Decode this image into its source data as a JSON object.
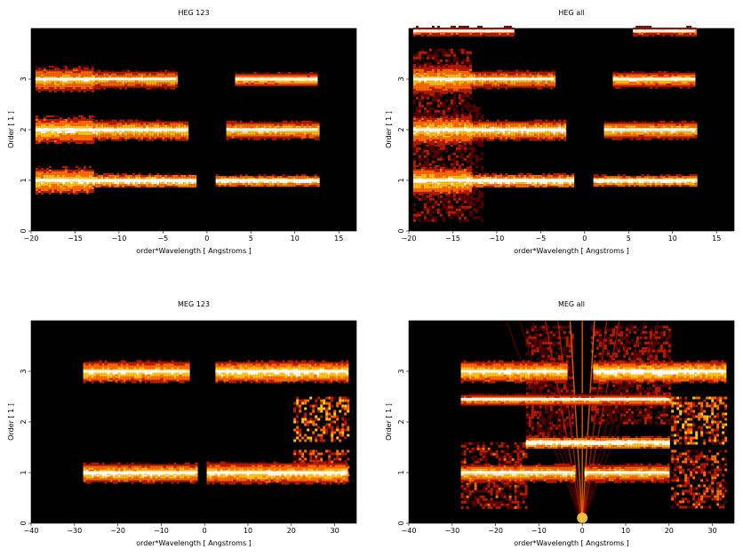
{
  "chart_data": [
    {
      "type": "heatmap",
      "title": "HEG 123",
      "xlabel": "order*Wavelength [ Angstroms ]",
      "ylabel": "Order [ 1 ]",
      "xlim": [
        -20,
        17
      ],
      "ylim": [
        0,
        4
      ],
      "xticks": [
        -20,
        -15,
        -10,
        -5,
        0,
        5,
        10,
        15
      ],
      "yticks": [
        0,
        1,
        2,
        3
      ],
      "colormap": [
        "#000000",
        "#5a0000",
        "#b51c00",
        "#ff6a00",
        "#ffc21a",
        "#ffffff"
      ],
      "bands": [
        {
          "order": 1,
          "x": [
            -19.5,
            -13.0
          ],
          "intensity": 0.85,
          "width": 0.28
        },
        {
          "order": 1,
          "x": [
            -13.0,
            -1.2
          ],
          "intensity": 0.95,
          "width": 0.14
        },
        {
          "order": 1,
          "x": [
            1.0,
            12.6
          ],
          "intensity": 0.95,
          "width": 0.12
        },
        {
          "order": 2,
          "x": [
            -19.5,
            -13.0
          ],
          "intensity": 0.85,
          "width": 0.28
        },
        {
          "order": 2,
          "x": [
            -13.0,
            -2.2
          ],
          "intensity": 0.9,
          "width": 0.2
        },
        {
          "order": 2,
          "x": [
            2.2,
            12.6
          ],
          "intensity": 0.85,
          "width": 0.18
        },
        {
          "order": 3,
          "x": [
            -19.5,
            -13.0
          ],
          "intensity": 0.8,
          "width": 0.26
        },
        {
          "order": 3,
          "x": [
            -13.0,
            -3.5
          ],
          "intensity": 0.8,
          "width": 0.18
        },
        {
          "order": 3,
          "x": [
            3.2,
            12.6
          ],
          "intensity": 0.8,
          "width": 0.14
        }
      ]
    },
    {
      "type": "heatmap",
      "title": "HEG all",
      "xlabel": "order*Wavelength [ Angstroms ]",
      "ylabel": "Order [ 1 ]",
      "xlim": [
        -20,
        17
      ],
      "ylim": [
        0,
        4
      ],
      "xticks": [
        -20,
        -15,
        -10,
        -5,
        0,
        5,
        10,
        15
      ],
      "yticks": [
        0,
        1,
        2,
        3
      ],
      "colormap": [
        "#000000",
        "#5a0000",
        "#b51c00",
        "#ff6a00",
        "#ffc21a",
        "#ffffff"
      ],
      "bands": [
        {
          "order": 1,
          "x": [
            -19.5,
            -13.0
          ],
          "intensity": 0.85,
          "width": 0.3
        },
        {
          "order": 1,
          "x": [
            -13.0,
            -1.2
          ],
          "intensity": 0.95,
          "width": 0.14
        },
        {
          "order": 1,
          "x": [
            1.0,
            12.6
          ],
          "intensity": 0.95,
          "width": 0.12
        },
        {
          "order": 2,
          "x": [
            -19.5,
            -13.0
          ],
          "intensity": 0.85,
          "width": 0.3
        },
        {
          "order": 2,
          "x": [
            -13.0,
            -2.2
          ],
          "intensity": 0.9,
          "width": 0.2
        },
        {
          "order": 2,
          "x": [
            2.2,
            12.6
          ],
          "intensity": 0.85,
          "width": 0.18
        },
        {
          "order": 3,
          "x": [
            -19.5,
            -13.0
          ],
          "intensity": 0.8,
          "width": 0.3
        },
        {
          "order": 3,
          "x": [
            -13.0,
            -3.5
          ],
          "intensity": 0.8,
          "width": 0.18
        },
        {
          "order": 3,
          "x": [
            3.2,
            12.6
          ],
          "intensity": 0.8,
          "width": 0.16
        },
        {
          "order": 3.95,
          "x": [
            -19.5,
            -8.0
          ],
          "intensity": 0.6,
          "width": 0.1
        },
        {
          "order": 3.95,
          "x": [
            5.5,
            12.6
          ],
          "intensity": 0.6,
          "width": 0.1
        }
      ],
      "scatter_blocks": [
        {
          "x": [
            -19.5,
            -13.0
          ],
          "y": [
            0.2,
            3.6
          ],
          "intensity": 0.35
        },
        {
          "x": [
            -13.0,
            -11.5
          ],
          "y": [
            0.2,
            2.5
          ],
          "intensity": 0.25
        }
      ]
    },
    {
      "type": "heatmap",
      "title": "MEG 123",
      "xlabel": "order*Wavelength [ Angstroms ]",
      "ylabel": "Order [ 1 ]",
      "xlim": [
        -40,
        35
      ],
      "ylim": [
        0,
        4
      ],
      "xticks": [
        -40,
        -30,
        -20,
        -10,
        0,
        10,
        20,
        30
      ],
      "yticks": [
        0,
        1,
        2,
        3
      ],
      "colormap": [
        "#000000",
        "#5a0000",
        "#b51c00",
        "#ff6a00",
        "#ffc21a",
        "#ffffff"
      ],
      "bands": [
        {
          "order": 1,
          "x": [
            -28.0,
            -2.0
          ],
          "intensity": 0.9,
          "width": 0.2
        },
        {
          "order": 1,
          "x": [
            0.5,
            33.0
          ],
          "intensity": 0.85,
          "width": 0.22
        },
        {
          "order": 3,
          "x": [
            -28.0,
            -4.0
          ],
          "intensity": 0.85,
          "width": 0.22
        },
        {
          "order": 3,
          "x": [
            2.5,
            33.0
          ],
          "intensity": 0.9,
          "width": 0.22
        }
      ],
      "scatter_blocks": [
        {
          "x": [
            20.5,
            33.0
          ],
          "y": [
            1.65,
            2.5
          ],
          "intensity": 0.7
        },
        {
          "x": [
            20.5,
            33.0
          ],
          "y": [
            0.85,
            1.45
          ],
          "intensity": 0.55
        }
      ]
    },
    {
      "type": "heatmap",
      "title": "MEG all",
      "xlabel": "order*Wavelength [ Angstroms ]",
      "ylabel": "Order [ 1 ]",
      "xlim": [
        -40,
        35
      ],
      "ylim": [
        0,
        4
      ],
      "xticks": [
        -40,
        -30,
        -20,
        -10,
        0,
        10,
        20,
        30
      ],
      "yticks": [
        0,
        1,
        2,
        3
      ],
      "colormap": [
        "#000000",
        "#5a0000",
        "#b51c00",
        "#ff6a00",
        "#ffc21a",
        "#ffffff"
      ],
      "bands": [
        {
          "order": 1,
          "x": [
            -28.0,
            -2.0
          ],
          "intensity": 0.9,
          "width": 0.18
        },
        {
          "order": 1,
          "x": [
            0.5,
            20.0
          ],
          "intensity": 0.85,
          "width": 0.18
        },
        {
          "order": 1.6,
          "x": [
            -13.0,
            20.0
          ],
          "intensity": 1.0,
          "width": 0.12
        },
        {
          "order": 2.45,
          "x": [
            -28.0,
            20.0
          ],
          "intensity": 0.7,
          "width": 0.12
        },
        {
          "order": 3,
          "x": [
            -28.0,
            -4.0
          ],
          "intensity": 0.85,
          "width": 0.22
        },
        {
          "order": 3,
          "x": [
            2.5,
            33.0
          ],
          "intensity": 0.9,
          "width": 0.22
        }
      ],
      "scatter_blocks": [
        {
          "x": [
            -28.0,
            -13.0
          ],
          "y": [
            0.3,
            1.6
          ],
          "intensity": 0.45
        },
        {
          "x": [
            -13.0,
            -2.0
          ],
          "y": [
            1.6,
            3.9
          ],
          "intensity": 0.35
        },
        {
          "x": [
            2.0,
            20.0
          ],
          "y": [
            2.0,
            3.9
          ],
          "intensity": 0.35
        },
        {
          "x": [
            20.5,
            33.0
          ],
          "y": [
            1.6,
            2.5
          ],
          "intensity": 0.7
        },
        {
          "x": [
            20.5,
            33.0
          ],
          "y": [
            0.3,
            1.45
          ],
          "intensity": 0.55
        }
      ],
      "wedges": [
        {
          "x0": 0.0,
          "y0": 0.0,
          "spread": 4.0,
          "intensity": 0.6
        }
      ]
    }
  ]
}
